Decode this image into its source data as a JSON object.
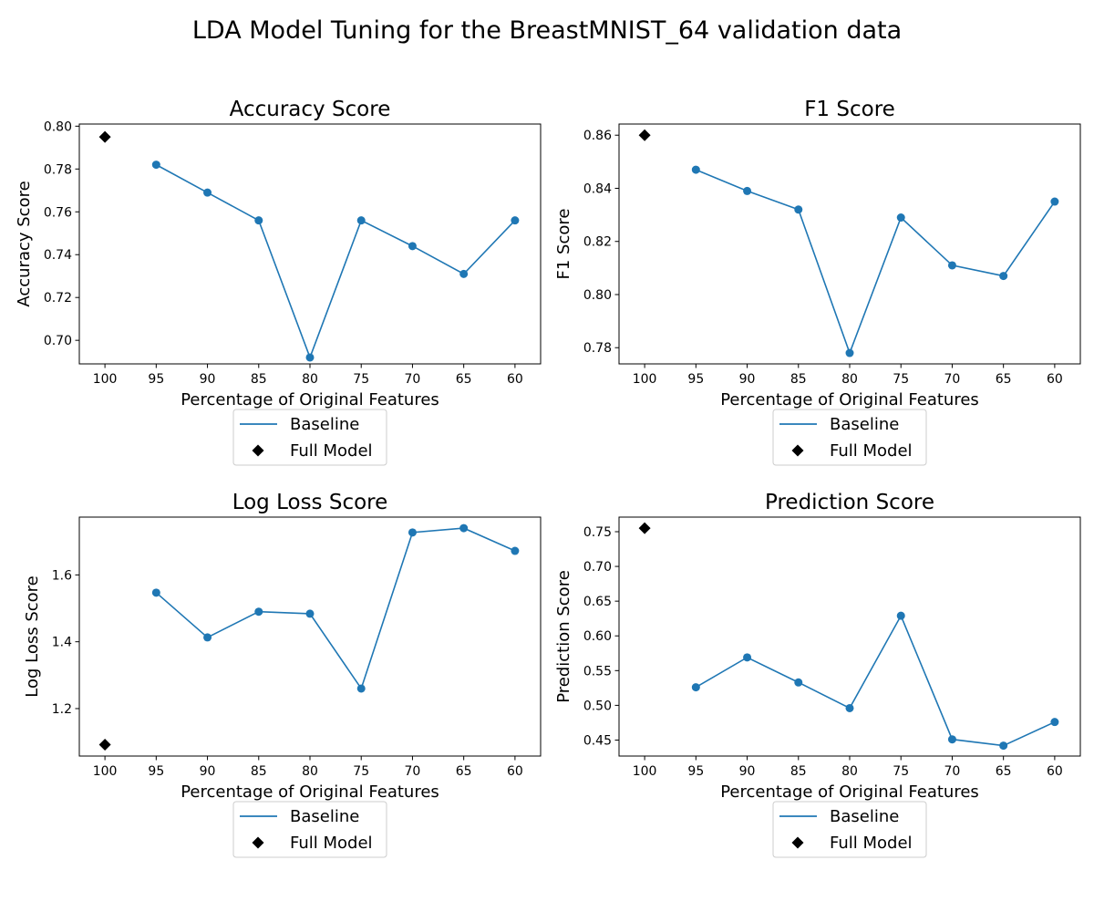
{
  "figure": {
    "title": "LDA Model Tuning for the BreastMNIST_64 validation data"
  },
  "chart_data": [
    {
      "type": "line",
      "title": "Accuracy Score",
      "xlabel": "Percentage of Original Features",
      "ylabel": "Accuracy Score",
      "categories": [
        "100",
        "95",
        "90",
        "85",
        "80",
        "75",
        "70",
        "65",
        "60"
      ],
      "series": [
        {
          "name": "Baseline",
          "color": "#1f77b4",
          "x": [
            "95",
            "90",
            "85",
            "80",
            "75",
            "70",
            "65",
            "60"
          ],
          "values": [
            0.782,
            0.769,
            0.756,
            0.692,
            0.756,
            0.744,
            0.731,
            0.756
          ]
        },
        {
          "name": "Full Model",
          "color": "#000000",
          "marker": "diamond",
          "x": [
            "100"
          ],
          "values": [
            0.795
          ]
        }
      ],
      "ylim": [
        0.689,
        0.801
      ],
      "yticks": [
        0.7,
        0.72,
        0.74,
        0.76,
        0.78,
        0.8
      ],
      "ytick_labels": [
        "0.70",
        "0.72",
        "0.74",
        "0.76",
        "0.78",
        "0.80"
      ],
      "legend": "below"
    },
    {
      "type": "line",
      "title": "F1 Score",
      "xlabel": "Percentage of Original Features",
      "ylabel": "F1 Score",
      "categories": [
        "100",
        "95",
        "90",
        "85",
        "80",
        "75",
        "70",
        "65",
        "60"
      ],
      "series": [
        {
          "name": "Baseline",
          "color": "#1f77b4",
          "x": [
            "95",
            "90",
            "85",
            "80",
            "75",
            "70",
            "65",
            "60"
          ],
          "values": [
            0.847,
            0.839,
            0.832,
            0.778,
            0.829,
            0.811,
            0.807,
            0.835
          ]
        },
        {
          "name": "Full Model",
          "color": "#000000",
          "marker": "diamond",
          "x": [
            "100"
          ],
          "values": [
            0.86
          ]
        }
      ],
      "ylim": [
        0.7739,
        0.8642
      ],
      "yticks": [
        0.78,
        0.8,
        0.82,
        0.84,
        0.86
      ],
      "ytick_labels": [
        "0.78",
        "0.80",
        "0.82",
        "0.84",
        "0.86"
      ],
      "legend": "below"
    },
    {
      "type": "line",
      "title": "Log Loss Score",
      "xlabel": "Percentage of Original Features",
      "ylabel": "Log Loss Score",
      "categories": [
        "100",
        "95",
        "90",
        "85",
        "80",
        "75",
        "70",
        "65",
        "60"
      ],
      "series": [
        {
          "name": "Baseline",
          "color": "#1f77b4",
          "x": [
            "95",
            "90",
            "85",
            "80",
            "75",
            "70",
            "65",
            "60"
          ],
          "values": [
            1.547,
            1.413,
            1.49,
            1.484,
            1.26,
            1.727,
            1.74,
            1.672
          ]
        },
        {
          "name": "Full Model",
          "color": "#000000",
          "marker": "diamond",
          "x": [
            "100"
          ],
          "values": [
            1.092
          ]
        }
      ],
      "ylim": [
        1.058,
        1.773
      ],
      "yticks": [
        1.2,
        1.4,
        1.6
      ],
      "ytick_labels": [
        "1.2",
        "1.4",
        "1.6"
      ],
      "legend": "below"
    },
    {
      "type": "line",
      "title": "Prediction Score",
      "xlabel": "Percentage of Original Features",
      "ylabel": "Prediction Score",
      "categories": [
        "100",
        "95",
        "90",
        "85",
        "80",
        "75",
        "70",
        "65",
        "60"
      ],
      "series": [
        {
          "name": "Baseline",
          "color": "#1f77b4",
          "x": [
            "95",
            "90",
            "85",
            "80",
            "75",
            "70",
            "65",
            "60"
          ],
          "values": [
            0.526,
            0.569,
            0.533,
            0.496,
            0.629,
            0.451,
            0.442,
            0.476
          ]
        },
        {
          "name": "Full Model",
          "color": "#000000",
          "marker": "diamond",
          "x": [
            "100"
          ],
          "values": [
            0.755
          ]
        }
      ],
      "ylim": [
        0.427,
        0.771
      ],
      "yticks": [
        0.45,
        0.5,
        0.55,
        0.6,
        0.65,
        0.7,
        0.75
      ],
      "ytick_labels": [
        "0.45",
        "0.50",
        "0.55",
        "0.60",
        "0.65",
        "0.70",
        "0.75"
      ],
      "legend": "below"
    }
  ]
}
